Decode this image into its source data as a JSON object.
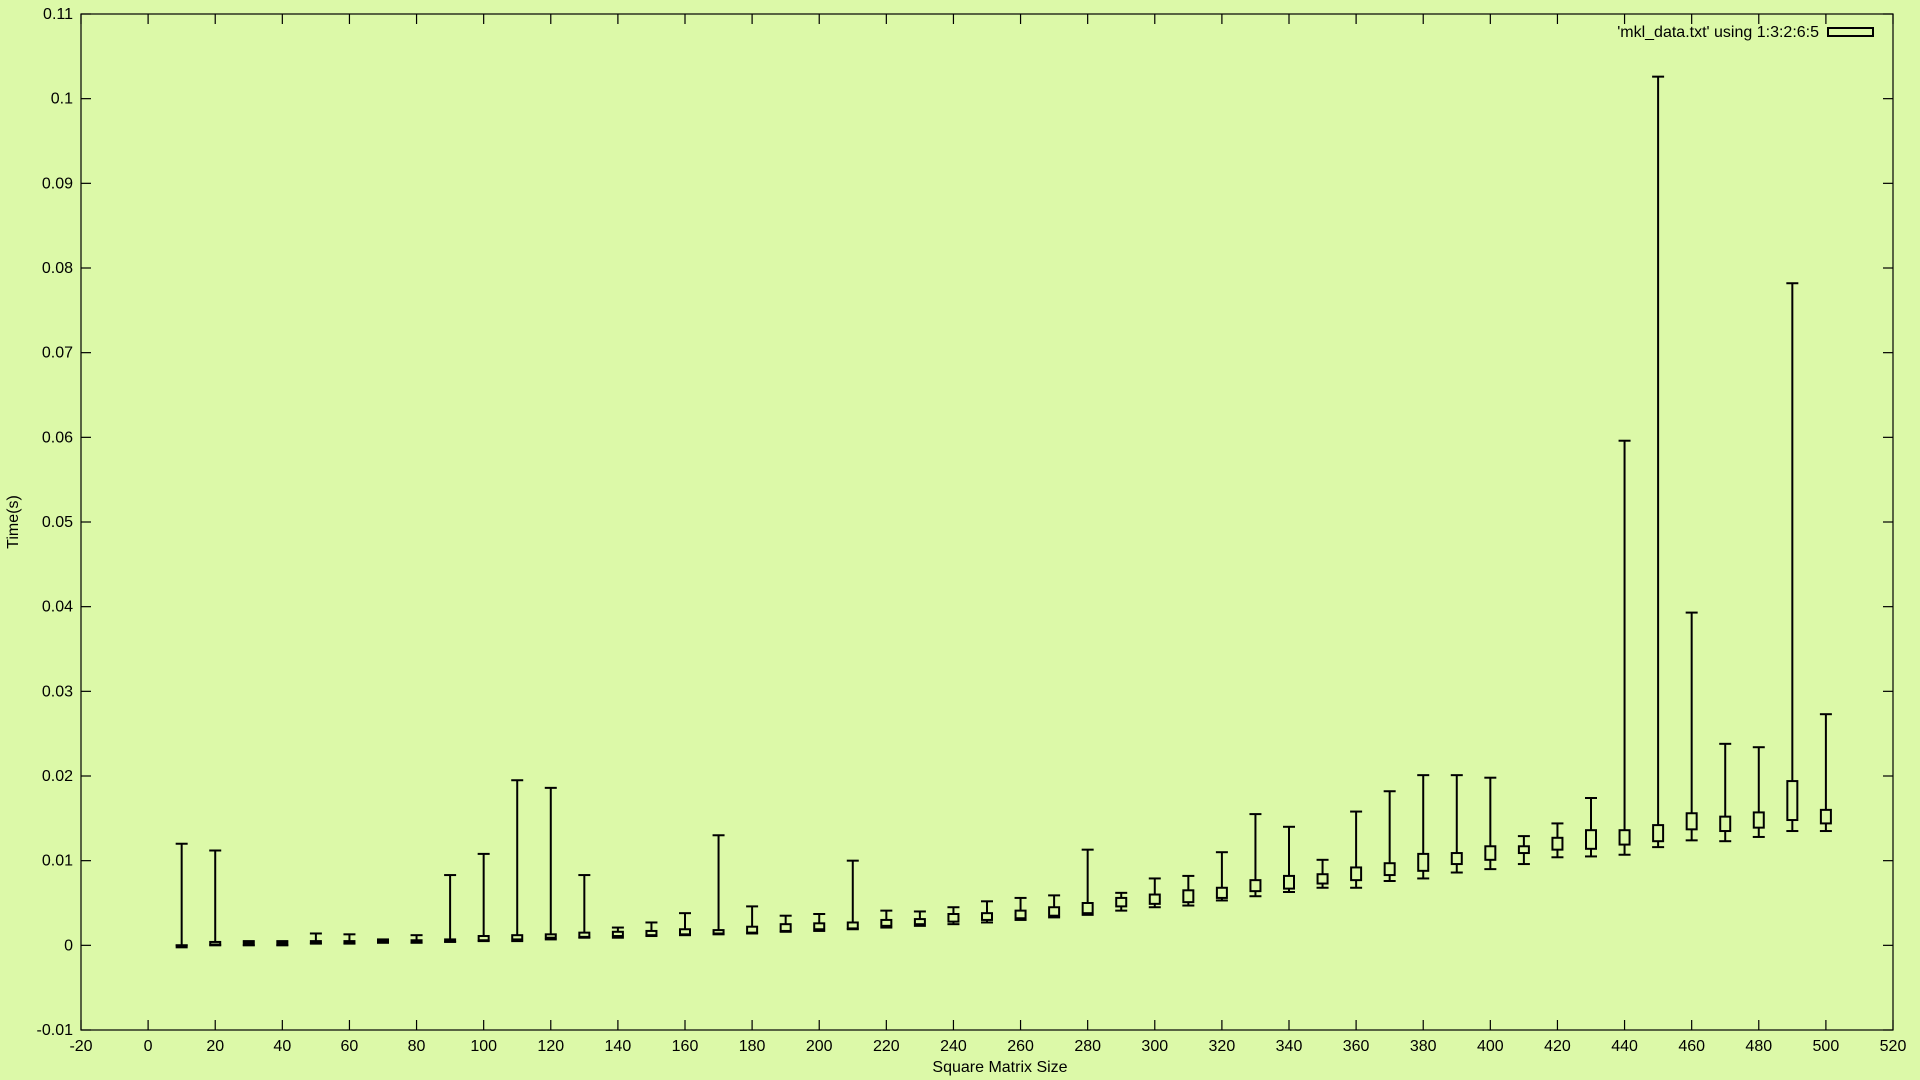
{
  "chart_data": {
    "type": "candlestick",
    "title": "",
    "xlabel": "Square Matrix Size",
    "ylabel": "Time(s)",
    "xlim": [
      -20,
      520
    ],
    "ylim": [
      -0.01,
      0.11
    ],
    "xticks": [
      -20,
      0,
      20,
      40,
      60,
      80,
      100,
      120,
      140,
      160,
      180,
      200,
      220,
      240,
      260,
      280,
      300,
      320,
      340,
      360,
      380,
      400,
      420,
      440,
      460,
      480,
      500,
      520
    ],
    "yticks": [
      -0.01,
      0,
      0.01,
      0.02,
      0.03,
      0.04,
      0.05,
      0.06,
      0.07,
      0.08,
      0.09,
      0.1,
      0.11
    ],
    "legend": {
      "label": "'mkl_data.txt' using 1:3:2:6:5",
      "position": "top-right"
    },
    "grid": false,
    "series": [
      {
        "name": "'mkl_data.txt' using 1:3:2:6:5",
        "points": [
          {
            "x": 10,
            "min": 0.0,
            "q1": 0.0,
            "q3": 0.0,
            "max": 0.012
          },
          {
            "x": 20,
            "min": 0.0,
            "q1": 0.0001,
            "q3": 0.0004,
            "max": 0.0112
          },
          {
            "x": 30,
            "min": 0.0,
            "q1": 0.0001,
            "q3": 0.0003,
            "max": 0.0005
          },
          {
            "x": 40,
            "min": 0.0,
            "q1": 0.0001,
            "q3": 0.0003,
            "max": 0.0005
          },
          {
            "x": 50,
            "min": 0.0002,
            "q1": 0.0003,
            "q3": 0.0005,
            "max": 0.0014
          },
          {
            "x": 60,
            "min": 0.0002,
            "q1": 0.0003,
            "q3": 0.0005,
            "max": 0.0013
          },
          {
            "x": 70,
            "min": 0.0003,
            "q1": 0.0004,
            "q3": 0.0006,
            "max": 0.0007
          },
          {
            "x": 80,
            "min": 0.0003,
            "q1": 0.0005,
            "q3": 0.0006,
            "max": 0.0012
          },
          {
            "x": 90,
            "min": 0.0004,
            "q1": 0.0005,
            "q3": 0.0007,
            "max": 0.0083
          },
          {
            "x": 100,
            "min": 0.0005,
            "q1": 0.0006,
            "q3": 0.0011,
            "max": 0.0108
          },
          {
            "x": 110,
            "min": 0.0005,
            "q1": 0.0007,
            "q3": 0.0012,
            "max": 0.0195
          },
          {
            "x": 120,
            "min": 0.0007,
            "q1": 0.0009,
            "q3": 0.0013,
            "max": 0.0186
          },
          {
            "x": 130,
            "min": 0.0009,
            "q1": 0.001,
            "q3": 0.0015,
            "max": 0.0083
          },
          {
            "x": 140,
            "min": 0.0009,
            "q1": 0.0011,
            "q3": 0.0016,
            "max": 0.0021
          },
          {
            "x": 150,
            "min": 0.0011,
            "q1": 0.0012,
            "q3": 0.0017,
            "max": 0.0027
          },
          {
            "x": 160,
            "min": 0.0012,
            "q1": 0.0013,
            "q3": 0.0019,
            "max": 0.0038
          },
          {
            "x": 170,
            "min": 0.0013,
            "q1": 0.0014,
            "q3": 0.0018,
            "max": 0.013
          },
          {
            "x": 180,
            "min": 0.0014,
            "q1": 0.0015,
            "q3": 0.0022,
            "max": 0.0046
          },
          {
            "x": 190,
            "min": 0.0016,
            "q1": 0.0017,
            "q3": 0.0025,
            "max": 0.0035
          },
          {
            "x": 200,
            "min": 0.0017,
            "q1": 0.0019,
            "q3": 0.0026,
            "max": 0.0037
          },
          {
            "x": 210,
            "min": 0.0019,
            "q1": 0.002,
            "q3": 0.0027,
            "max": 0.01
          },
          {
            "x": 220,
            "min": 0.0021,
            "q1": 0.0023,
            "q3": 0.003,
            "max": 0.0041
          },
          {
            "x": 230,
            "min": 0.0023,
            "q1": 0.0025,
            "q3": 0.0031,
            "max": 0.004
          },
          {
            "x": 240,
            "min": 0.0025,
            "q1": 0.0028,
            "q3": 0.0037,
            "max": 0.0045
          },
          {
            "x": 250,
            "min": 0.0027,
            "q1": 0.003,
            "q3": 0.0038,
            "max": 0.0052
          },
          {
            "x": 260,
            "min": 0.003,
            "q1": 0.0032,
            "q3": 0.0041,
            "max": 0.0056
          },
          {
            "x": 270,
            "min": 0.0033,
            "q1": 0.0035,
            "q3": 0.0045,
            "max": 0.0059
          },
          {
            "x": 280,
            "min": 0.0036,
            "q1": 0.0038,
            "q3": 0.005,
            "max": 0.0113
          },
          {
            "x": 290,
            "min": 0.0041,
            "q1": 0.0046,
            "q3": 0.0056,
            "max": 0.0062
          },
          {
            "x": 300,
            "min": 0.0045,
            "q1": 0.0049,
            "q3": 0.006,
            "max": 0.0079
          },
          {
            "x": 310,
            "min": 0.0047,
            "q1": 0.0051,
            "q3": 0.0065,
            "max": 0.0082
          },
          {
            "x": 320,
            "min": 0.0053,
            "q1": 0.0056,
            "q3": 0.0068,
            "max": 0.011
          },
          {
            "x": 330,
            "min": 0.0058,
            "q1": 0.0064,
            "q3": 0.0077,
            "max": 0.0155
          },
          {
            "x": 340,
            "min": 0.0063,
            "q1": 0.0067,
            "q3": 0.0082,
            "max": 0.014
          },
          {
            "x": 350,
            "min": 0.0068,
            "q1": 0.0073,
            "q3": 0.0084,
            "max": 0.0101
          },
          {
            "x": 360,
            "min": 0.0068,
            "q1": 0.0077,
            "q3": 0.0092,
            "max": 0.0158
          },
          {
            "x": 370,
            "min": 0.0076,
            "q1": 0.0083,
            "q3": 0.0097,
            "max": 0.0182
          },
          {
            "x": 380,
            "min": 0.0079,
            "q1": 0.0088,
            "q3": 0.0108,
            "max": 0.0201
          },
          {
            "x": 390,
            "min": 0.0086,
            "q1": 0.0096,
            "q3": 0.0109,
            "max": 0.0201
          },
          {
            "x": 400,
            "min": 0.009,
            "q1": 0.0101,
            "q3": 0.0117,
            "max": 0.0198
          },
          {
            "x": 410,
            "min": 0.0096,
            "q1": 0.0109,
            "q3": 0.0117,
            "max": 0.0129
          },
          {
            "x": 420,
            "min": 0.0104,
            "q1": 0.0113,
            "q3": 0.0127,
            "max": 0.0144
          },
          {
            "x": 430,
            "min": 0.0105,
            "q1": 0.0114,
            "q3": 0.0136,
            "max": 0.0174
          },
          {
            "x": 440,
            "min": 0.0107,
            "q1": 0.0119,
            "q3": 0.0136,
            "max": 0.0596
          },
          {
            "x": 450,
            "min": 0.0116,
            "q1": 0.0123,
            "q3": 0.0142,
            "max": 0.1026
          },
          {
            "x": 460,
            "min": 0.0124,
            "q1": 0.0137,
            "q3": 0.0156,
            "max": 0.0393
          },
          {
            "x": 470,
            "min": 0.0123,
            "q1": 0.0135,
            "q3": 0.0152,
            "max": 0.0238
          },
          {
            "x": 480,
            "min": 0.0128,
            "q1": 0.0139,
            "q3": 0.0157,
            "max": 0.0234
          },
          {
            "x": 490,
            "min": 0.0135,
            "q1": 0.0148,
            "q3": 0.0194,
            "max": 0.0782
          },
          {
            "x": 500,
            "min": 0.0135,
            "q1": 0.0144,
            "q3": 0.016,
            "max": 0.0273
          }
        ]
      }
    ]
  }
}
